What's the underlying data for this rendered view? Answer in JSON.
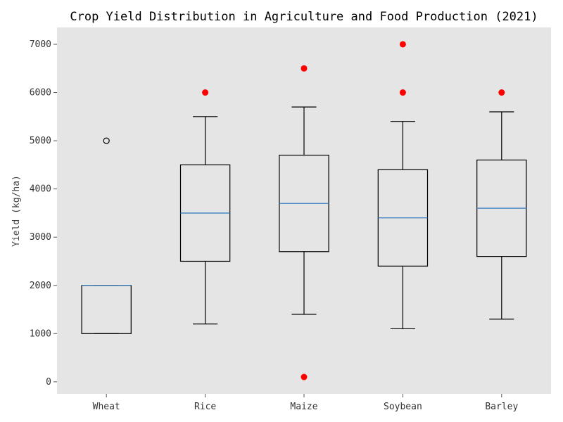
{
  "chart_data": {
    "type": "box",
    "title": "Crop Yield Distribution in Agriculture and Food Production (2021)",
    "xlabel": "",
    "ylabel": "Yield (kg/ha)",
    "categories": [
      "Wheat",
      "Rice",
      "Maize",
      "Soybean",
      "Barley"
    ],
    "ylim": [
      -250,
      7350
    ],
    "yticks": [
      0,
      1000,
      2000,
      3000,
      4000,
      5000,
      6000,
      7000
    ],
    "grid": false,
    "boxes": [
      {
        "category": "Wheat",
        "whisker_low": 1000,
        "q1": 1000,
        "median": 2000,
        "q3": 2000,
        "whisker_high": 2000,
        "outliers": [
          5000
        ],
        "outlier_style": "hollow"
      },
      {
        "category": "Rice",
        "whisker_low": 1200,
        "q1": 2500,
        "median": 3500,
        "q3": 4500,
        "whisker_high": 5500,
        "outliers": [
          6000
        ],
        "outlier_style": "red"
      },
      {
        "category": "Maize",
        "whisker_low": 1400,
        "q1": 2700,
        "median": 3700,
        "q3": 4700,
        "whisker_high": 5700,
        "outliers": [
          100,
          6500
        ],
        "outlier_style": "red"
      },
      {
        "category": "Soybean",
        "whisker_low": 1100,
        "q1": 2400,
        "median": 3400,
        "q3": 4400,
        "whisker_high": 5400,
        "outliers": [
          6000,
          7000
        ],
        "outlier_style": "red"
      },
      {
        "category": "Barley",
        "whisker_low": 1300,
        "q1": 2600,
        "median": 3600,
        "q3": 4600,
        "whisker_high": 5600,
        "outliers": [
          6000
        ],
        "outlier_style": "red"
      }
    ],
    "colors": {
      "plot_background": "#e5e5e5",
      "box": "#000000",
      "median": "#3a7ebf",
      "outlier_red": "#ff0000"
    }
  }
}
